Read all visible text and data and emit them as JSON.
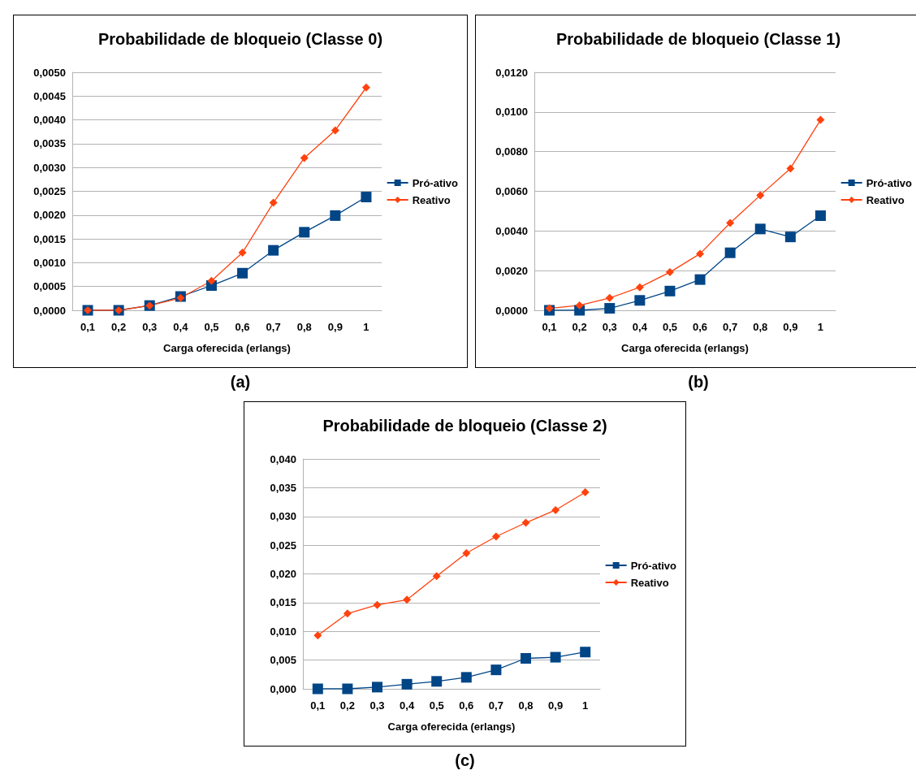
{
  "chart_data": [
    {
      "type": "line",
      "title": "Probabilidade de bloqueio (Classe 0)",
      "xlabel": "Carga oferecida (erlangs)",
      "annotations": [
        "(a)"
      ],
      "categories": [
        "0,1",
        "0,2",
        "0,3",
        "0,4",
        "0,5",
        "0,6",
        "0,7",
        "0,8",
        "0,9",
        "1"
      ],
      "series": [
        {
          "name": "Pró-ativo",
          "color": "#004586",
          "marker": "square",
          "values": [
            0,
            0,
            0.0001,
            0.00029,
            0.00052,
            0.00078,
            0.00126,
            0.00164,
            0.00199,
            0.00238
          ]
        },
        {
          "name": "Reativo",
          "color": "#ff420e",
          "marker": "diamond",
          "values": [
            0,
            0,
            0.0001,
            0.00026,
            0.00062,
            0.00121,
            0.00226,
            0.0032,
            0.00378,
            0.00468
          ]
        }
      ],
      "ylim": [
        0,
        0.005
      ],
      "yticks": [
        {
          "value": 0,
          "label": "0,0000"
        },
        {
          "value": 0.0005,
          "label": "0,0005"
        },
        {
          "value": 0.001,
          "label": "0,0010"
        },
        {
          "value": 0.0015,
          "label": "0,0015"
        },
        {
          "value": 0.002,
          "label": "0,0020"
        },
        {
          "value": 0.0025,
          "label": "0,0025"
        },
        {
          "value": 0.003,
          "label": "0,0030"
        },
        {
          "value": 0.0035,
          "label": "0,0035"
        },
        {
          "value": 0.004,
          "label": "0,0040"
        },
        {
          "value": 0.0045,
          "label": "0,0045"
        },
        {
          "value": 0.005,
          "label": "0,0050"
        }
      ],
      "grid": "y",
      "legend": "right"
    },
    {
      "type": "line",
      "title": "Probabilidade de bloqueio (Classe 1)",
      "xlabel": "Carga oferecida (erlangs)",
      "annotations": [
        "(b)"
      ],
      "categories": [
        "0,1",
        "0,2",
        "0,3",
        "0,4",
        "0,5",
        "0,6",
        "0,7",
        "0,8",
        "0,9",
        "1"
      ],
      "series": [
        {
          "name": "Pró-ativo",
          "color": "#004586",
          "marker": "square",
          "values": [
            0,
            0,
            0.0001,
            0.0005,
            0.00097,
            0.00155,
            0.0029,
            0.0041,
            0.0037,
            0.00477
          ]
        },
        {
          "name": "Reativo",
          "color": "#ff420e",
          "marker": "diamond",
          "values": [
            0.0001,
            0.00025,
            0.00062,
            0.00116,
            0.00192,
            0.00285,
            0.0044,
            0.0058,
            0.00715,
            0.0096
          ]
        }
      ],
      "ylim": [
        0,
        0.012
      ],
      "yticks": [
        {
          "value": 0,
          "label": "0,0000"
        },
        {
          "value": 0.002,
          "label": "0,0020"
        },
        {
          "value": 0.004,
          "label": "0,0040"
        },
        {
          "value": 0.006,
          "label": "0,0060"
        },
        {
          "value": 0.008,
          "label": "0,0080"
        },
        {
          "value": 0.01,
          "label": "0,0100"
        },
        {
          "value": 0.012,
          "label": "0,0120"
        }
      ],
      "grid": "y",
      "legend": "right"
    },
    {
      "type": "line",
      "title": "Probabilidade de bloqueio (Classe 2)",
      "xlabel": "Carga oferecida (erlangs)",
      "annotations": [
        "(c)"
      ],
      "categories": [
        "0,1",
        "0,2",
        "0,3",
        "0,4",
        "0,5",
        "0,6",
        "0,7",
        "0,8",
        "0,9",
        "1"
      ],
      "series": [
        {
          "name": "Pró-ativo",
          "color": "#004586",
          "marker": "square",
          "values": [
            0,
            0,
            0.0003,
            0.0008,
            0.0013,
            0.002,
            0.0033,
            0.0053,
            0.0055,
            0.0064
          ]
        },
        {
          "name": "Reativo",
          "color": "#ff420e",
          "marker": "diamond",
          "values": [
            0.0093,
            0.0131,
            0.0146,
            0.0155,
            0.0196,
            0.0236,
            0.0265,
            0.0289,
            0.0311,
            0.0342
          ]
        }
      ],
      "ylim": [
        0,
        0.04
      ],
      "yticks": [
        {
          "value": 0,
          "label": "0,000"
        },
        {
          "value": 0.005,
          "label": "0,005"
        },
        {
          "value": 0.01,
          "label": "0,010"
        },
        {
          "value": 0.015,
          "label": "0,015"
        },
        {
          "value": 0.02,
          "label": "0,020"
        },
        {
          "value": 0.025,
          "label": "0,025"
        },
        {
          "value": 0.03,
          "label": "0,030"
        },
        {
          "value": 0.035,
          "label": "0,035"
        },
        {
          "value": 0.04,
          "label": "0,040"
        }
      ],
      "grid": "y",
      "legend": "right"
    }
  ]
}
